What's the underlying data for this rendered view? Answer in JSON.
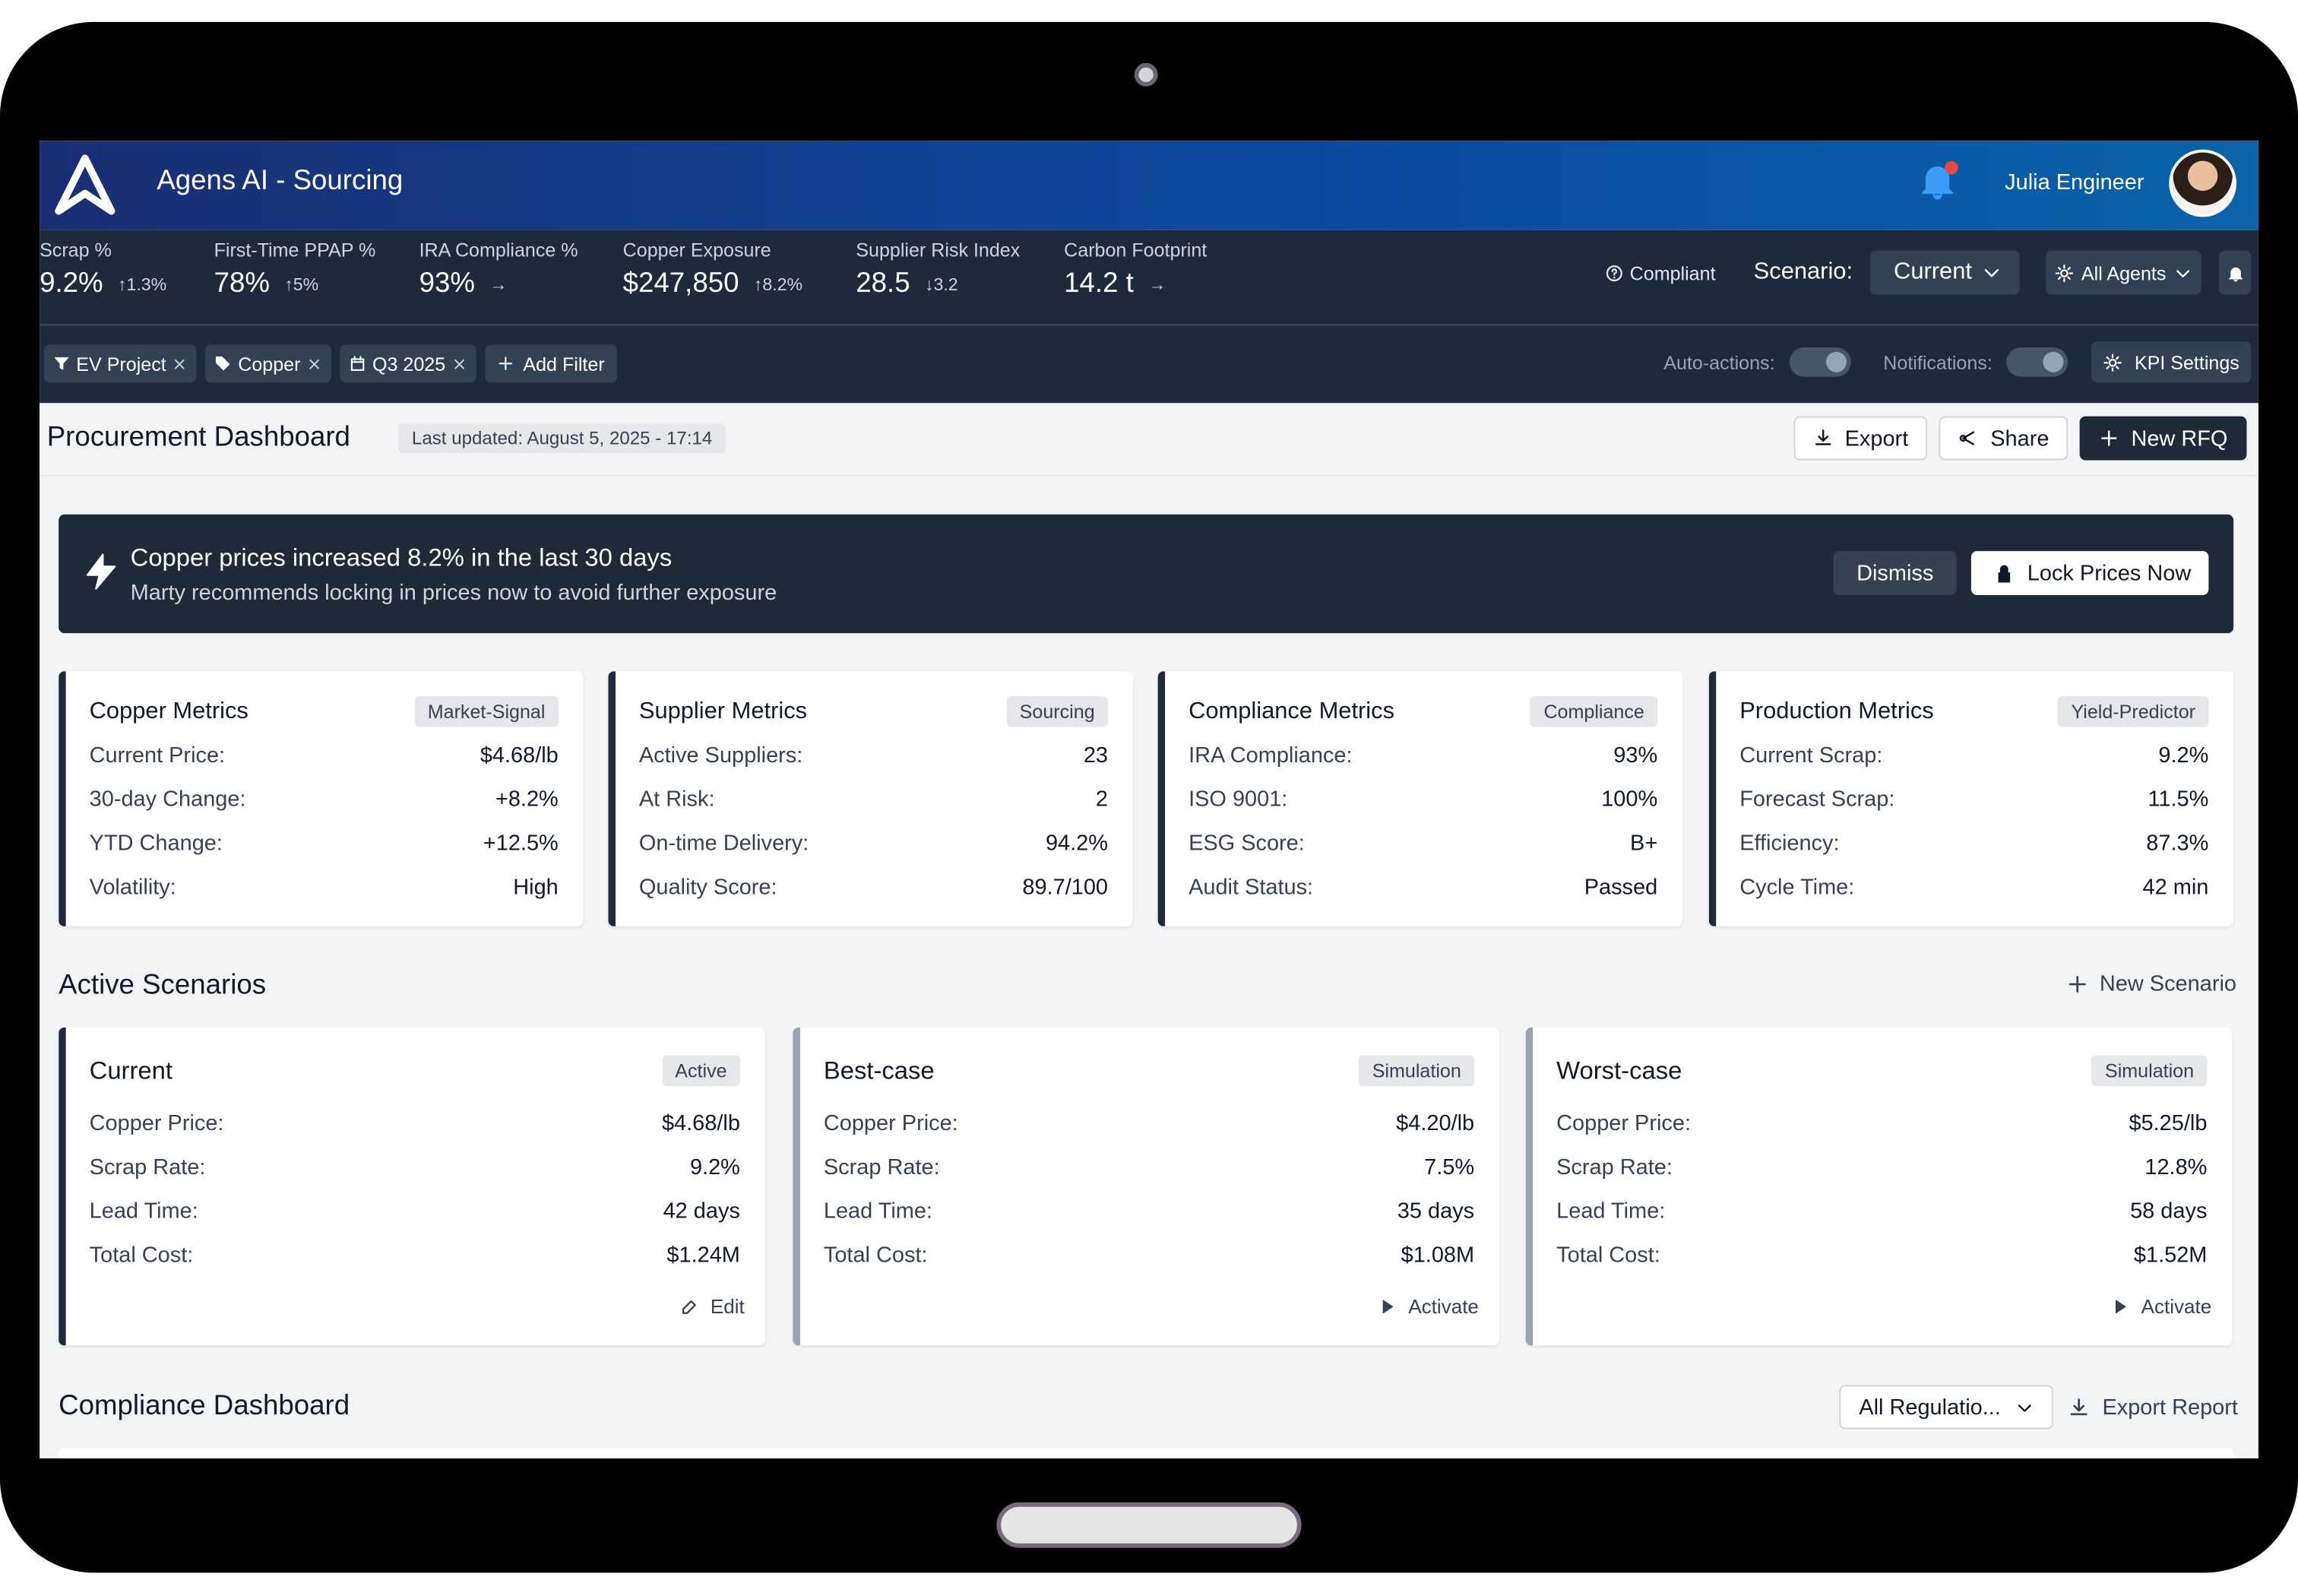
{
  "header": {
    "app_title": "Agens AI - Sourcing",
    "user": "Julia Engineer"
  },
  "kpis": [
    {
      "label": "Scrap %",
      "value": "9.2%",
      "delta": "↑1.3%"
    },
    {
      "label": "First-Time PPAP %",
      "value": "78%",
      "delta": "↑5%"
    },
    {
      "label": "IRA Compliance %",
      "value": "93%",
      "delta": "→"
    },
    {
      "label": "Copper Exposure",
      "value": "$247,850",
      "delta": "↑8.2%"
    },
    {
      "label": "Supplier Risk Index",
      "value": "28.5",
      "delta": "↓3.2"
    },
    {
      "label": "Carbon Footprint",
      "value": "14.2 t",
      "delta": "→"
    }
  ],
  "status": {
    "compliance": "Compliant",
    "scenario_label": "Scenario:",
    "scenario": "Current",
    "agents": "All Agents"
  },
  "filters": {
    "chips": [
      "EV Project",
      "Copper",
      "Q3 2025"
    ],
    "add": "Add Filter",
    "auto_actions": "Auto-actions:",
    "notifications": "Notifications:",
    "kpi_settings": "KPI Settings"
  },
  "page": {
    "title": "Procurement Dashboard",
    "updated": "Last updated: August 5, 2025 - 17:14",
    "buttons": [
      "Export",
      "Share",
      "New RFQ"
    ]
  },
  "alert": {
    "title": "Copper prices increased 8.2% in the last 30 days",
    "message": "Marty recommends locking in prices now to avoid further exposure",
    "dismiss": "Dismiss",
    "lock": "Lock Prices Now"
  },
  "metric_cards": [
    {
      "title": "Copper Metrics",
      "tag": "Market-Signal",
      "rows": [
        [
          "Current Price:",
          "$4.68/lb"
        ],
        [
          "30-day Change:",
          "+8.2%"
        ],
        [
          "YTD Change:",
          "+12.5%"
        ],
        [
          "Volatility:",
          "High"
        ]
      ]
    },
    {
      "title": "Supplier Metrics",
      "tag": "Sourcing",
      "rows": [
        [
          "Active Suppliers:",
          "23"
        ],
        [
          "At Risk:",
          "2"
        ],
        [
          "On-time Delivery:",
          "94.2%"
        ],
        [
          "Quality Score:",
          "89.7/100"
        ]
      ]
    },
    {
      "title": "Compliance Metrics",
      "tag": "Compliance",
      "rows": [
        [
          "IRA Compliance:",
          "93%"
        ],
        [
          "ISO 9001:",
          "100%"
        ],
        [
          "ESG Score:",
          "B+"
        ],
        [
          "Audit Status:",
          "Passed"
        ]
      ]
    },
    {
      "title": "Production Metrics",
      "tag": "Yield-Predictor",
      "rows": [
        [
          "Current Scrap:",
          "9.2%"
        ],
        [
          "Forecast Scrap:",
          "11.5%"
        ],
        [
          "Efficiency:",
          "87.3%"
        ],
        [
          "Cycle Time:",
          "42 min"
        ]
      ]
    }
  ],
  "scenarios": {
    "heading": "Active Scenarios",
    "new": "New Scenario",
    "cards": [
      {
        "title": "Current",
        "tag": "Active",
        "rows": [
          [
            "Copper Price:",
            "$4.68/lb"
          ],
          [
            "Scrap Rate:",
            "9.2%"
          ],
          [
            "Lead Time:",
            "42 days"
          ],
          [
            "Total Cost:",
            "$1.24M"
          ]
        ],
        "action": "Edit"
      },
      {
        "title": "Best-case",
        "tag": "Simulation",
        "rows": [
          [
            "Copper Price:",
            "$4.20/lb"
          ],
          [
            "Scrap Rate:",
            "7.5%"
          ],
          [
            "Lead Time:",
            "35 days"
          ],
          [
            "Total Cost:",
            "$1.08M"
          ]
        ],
        "action": "Activate"
      },
      {
        "title": "Worst-case",
        "tag": "Simulation",
        "rows": [
          [
            "Copper Price:",
            "$5.25/lb"
          ],
          [
            "Scrap Rate:",
            "12.8%"
          ],
          [
            "Lead Time:",
            "58 days"
          ],
          [
            "Total Cost:",
            "$1.52M"
          ]
        ],
        "action": "Activate"
      }
    ]
  },
  "compliance": {
    "heading": "Compliance Dashboard",
    "select": "All Regulatio...",
    "export": "Export Report"
  }
}
